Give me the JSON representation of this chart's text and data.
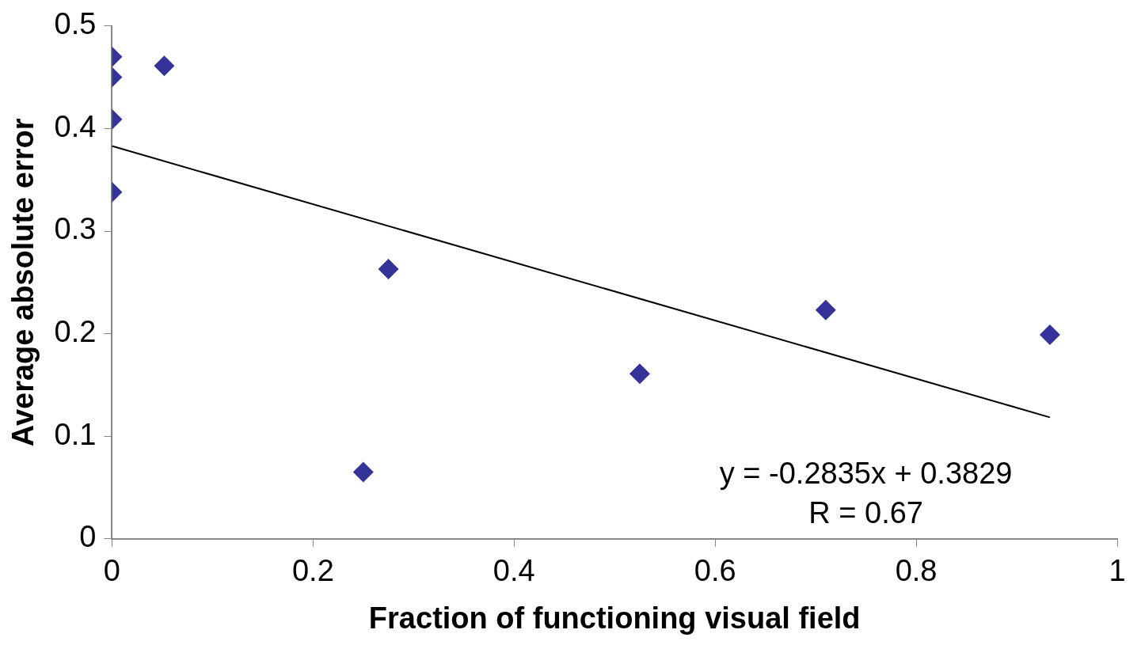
{
  "chart_data": {
    "type": "scatter",
    "xlabel": "Fraction of functioning visual field",
    "ylabel": "Average absolute error",
    "xlim": [
      0,
      1
    ],
    "ylim": [
      0,
      0.5
    ],
    "xticks": [
      0,
      0.2,
      0.4,
      0.6,
      0.8,
      1
    ],
    "yticks": [
      0,
      0.1,
      0.2,
      0.3,
      0.4,
      0.5
    ],
    "grid": false,
    "legend": false,
    "series": [
      {
        "type": "scatter",
        "color": "#333399",
        "marker": "diamond",
        "x": [
          0,
          0,
          0,
          0,
          0.052,
          0.275,
          0.25,
          0.525,
          0.71,
          0.933
        ],
        "values": [
          0.47,
          0.45,
          0.409,
          0.338,
          0.461,
          0.263,
          0.065,
          0.161,
          0.223,
          0.199
        ]
      },
      {
        "type": "line",
        "color": "#000000",
        "marker": "none",
        "line_style": "solid",
        "x": [
          0,
          0.933
        ],
        "values": [
          0.3829,
          0.1184
        ]
      }
    ],
    "annotations": [
      "y = -0.2835x + 0.3829",
      "R = 0.67"
    ]
  }
}
